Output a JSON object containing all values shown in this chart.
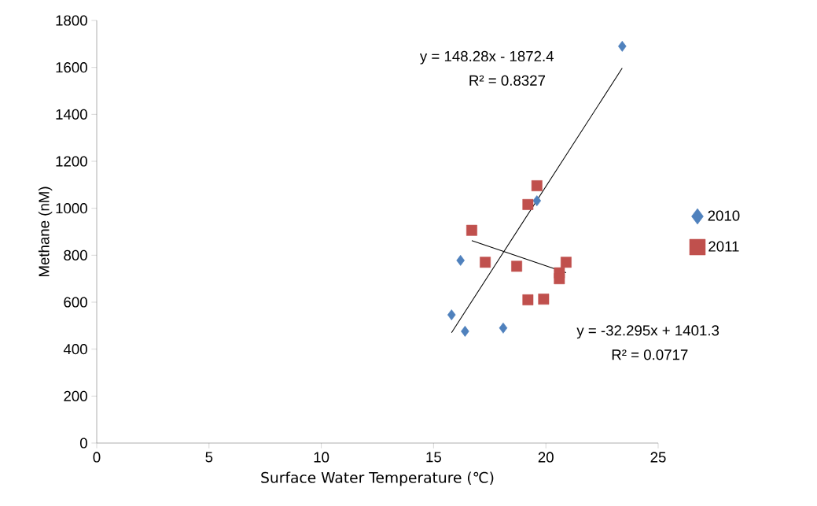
{
  "chart_data": {
    "type": "scatter",
    "xlabel": "Surface Water Temperature (℃)",
    "ylabel": "Methane (nM)",
    "xlim": [
      0,
      25
    ],
    "xticks": [
      0,
      5,
      10,
      15,
      20,
      25
    ],
    "ylim": [
      0,
      1800
    ],
    "yticks": [
      0,
      200,
      400,
      600,
      800,
      1000,
      1200,
      1400,
      1600,
      1800
    ],
    "grid": false,
    "legend": "right",
    "annotations": [
      "y = 148.28x - 1872.4",
      "R² = 0.8327",
      "y = -32.295x + 1401.3",
      "R² = 0.0717"
    ],
    "series": [
      {
        "name": "2010",
        "color": "#4f81bd",
        "marker": "diamond",
        "x": [
          16.2,
          15.8,
          16.4,
          18.1,
          19.6,
          23.4
        ],
        "values": [
          778,
          546,
          476,
          490,
          1032,
          1690
        ]
      },
      {
        "name": "2011",
        "color": "#c0504d",
        "marker": "square",
        "x": [
          16.7,
          17.3,
          18.7,
          19.2,
          19.6,
          19.2,
          19.9,
          20.9,
          20.6,
          20.6
        ],
        "values": [
          906,
          770,
          753,
          1016,
          1096,
          610,
          613,
          770,
          725,
          700
        ]
      },
      {
        "type": "line",
        "color": "#000000",
        "x": [
          15.8,
          23.4
        ],
        "values": [
          470,
          1597
        ]
      },
      {
        "type": "line",
        "color": "#000000",
        "x": [
          16.7,
          20.9
        ],
        "values": [
          862,
          726
        ]
      }
    ]
  }
}
